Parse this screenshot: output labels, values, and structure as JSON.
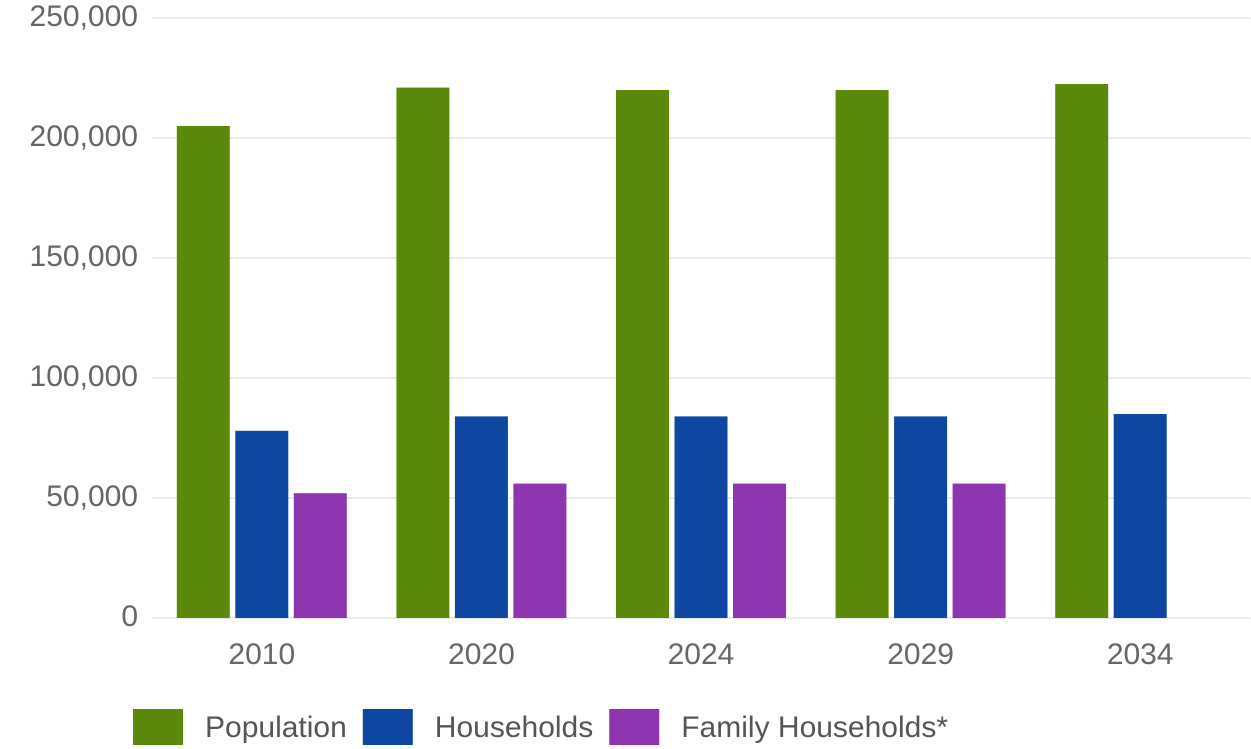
{
  "chart_data": {
    "type": "bar",
    "categories": [
      "2010",
      "2020",
      "2024",
      "2029",
      "2034"
    ],
    "series": [
      {
        "name": "Population",
        "color": "#5b8a0a",
        "values": [
          205000,
          221000,
          220000,
          220000,
          222500
        ]
      },
      {
        "name": "Households",
        "color": "#0d47a1",
        "values": [
          78000,
          84000,
          84000,
          84000,
          85000
        ]
      },
      {
        "name": "Family Households*",
        "color": "#8e35b0",
        "values": [
          52000,
          56000,
          56000,
          56000,
          null
        ]
      }
    ],
    "ylim": [
      0,
      250000
    ],
    "yticks": [
      0,
      {
        "value": 50000,
        "label": "50,000"
      },
      {
        "value": 100000,
        "label": "100,000"
      },
      {
        "value": 150000,
        "label": "150,000"
      },
      {
        "value": 200000,
        "label": "200,000"
      },
      {
        "value": 250000,
        "label": "250,000"
      }
    ],
    "grid": true,
    "legend": "bottom"
  }
}
